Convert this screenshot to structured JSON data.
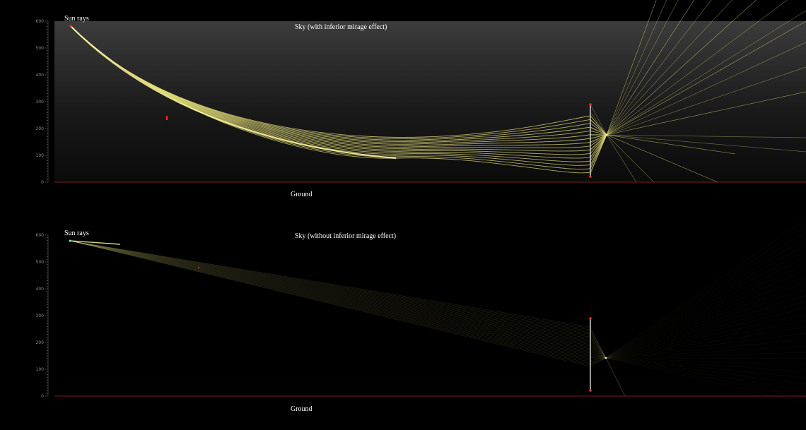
{
  "panels": [
    {
      "id": "top",
      "sun_label": "Sun rays",
      "sky_label": "Sky (with inferior mirage effect)",
      "ground_label": "Ground",
      "mirage": true,
      "y_ticks": [
        "600",
        "500",
        "400",
        "300",
        "200",
        "100",
        "0"
      ]
    },
    {
      "id": "bottom",
      "sun_label": "Sun rays",
      "sky_label": "Sky (without inferior mirage effect)",
      "ground_label": "Ground",
      "mirage": false,
      "y_ticks": [
        "600",
        "500",
        "400",
        "300",
        "200",
        "100",
        "0"
      ]
    }
  ],
  "colors": {
    "background": "#000000",
    "sky_top": "#3a3a3a",
    "ray": "#e6e07a",
    "ground_line": "#7a1e1e",
    "marker": "#ff2a2a",
    "lens": "#cfcfcf",
    "label": "#ffffff",
    "tick": "#7a7a7a"
  }
}
